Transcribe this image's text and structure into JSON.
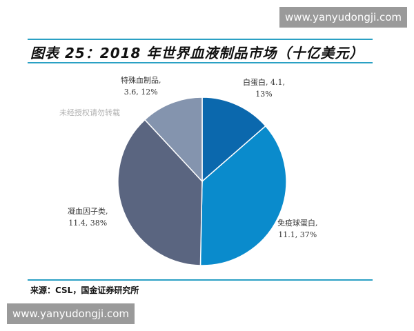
{
  "watermark": "www.yanyudongji.com",
  "notice": "未经授权请勿转载",
  "source": "来源：CSL，国金证券研究所",
  "chart_data": {
    "type": "pie",
    "title": "图表 25：2018 年世界血液制品市场（十亿美元）",
    "slices": [
      {
        "name": "白蛋白",
        "value": 4.1,
        "percent": "13%",
        "color": "#0b68ad",
        "label1": "白蛋白, 4.1,",
        "label2": "13%"
      },
      {
        "name": "免疫球蛋白",
        "value": 11.1,
        "percent": "37%",
        "color": "#0a8bcc",
        "label1": "免疫球蛋白,",
        "label2": "11.1, 37%"
      },
      {
        "name": "凝血因子类",
        "value": 11.4,
        "percent": "38%",
        "color": "#5a6580",
        "label1": "凝血因子类,",
        "label2": "11.4, 38%"
      },
      {
        "name": "特殊血制品",
        "value": 3.6,
        "percent": "12%",
        "color": "#8494ae",
        "label1": "特殊血制品,",
        "label2": "3.6, 12%"
      }
    ]
  }
}
